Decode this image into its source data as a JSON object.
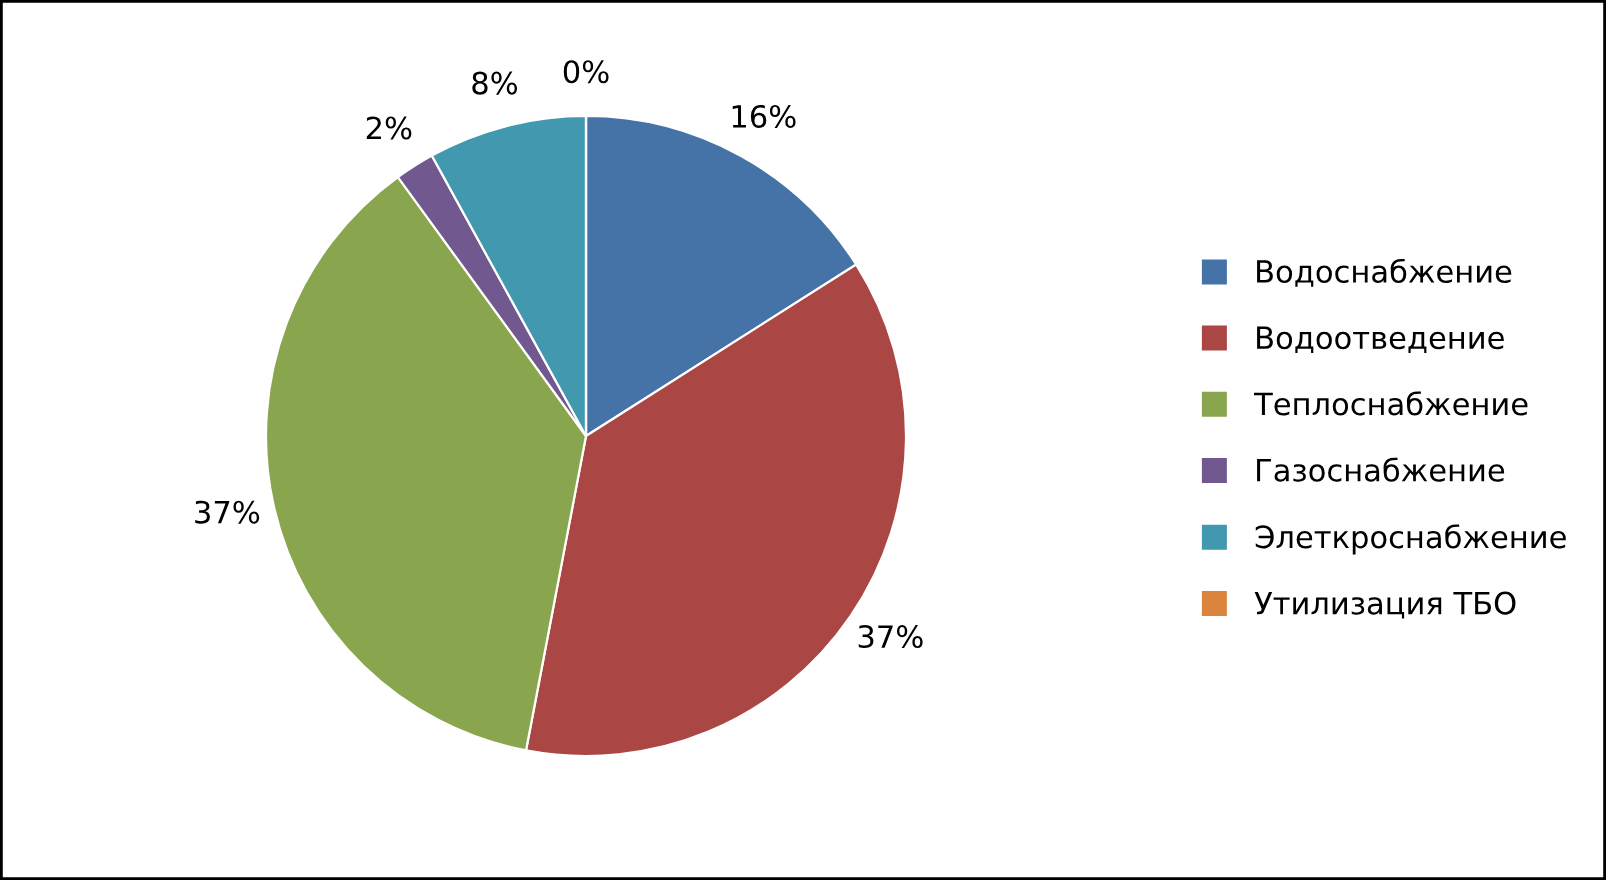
{
  "chart_data": {
    "type": "pie",
    "categories": [
      "Водоснабжение",
      "Водоотведение",
      "Теплоснабжение",
      "Газоснабжение",
      "Элеткроснабжение",
      "Утилизация ТБО"
    ],
    "values": [
      16,
      37,
      37,
      2,
      8,
      0
    ],
    "value_labels": [
      "16%",
      "37%",
      "37%",
      "2%",
      "8%",
      "0%"
    ],
    "colors": [
      "#4572a7",
      "#aa4643",
      "#89a54e",
      "#71588f",
      "#4198af",
      "#db843d"
    ],
    "legend": "right"
  }
}
